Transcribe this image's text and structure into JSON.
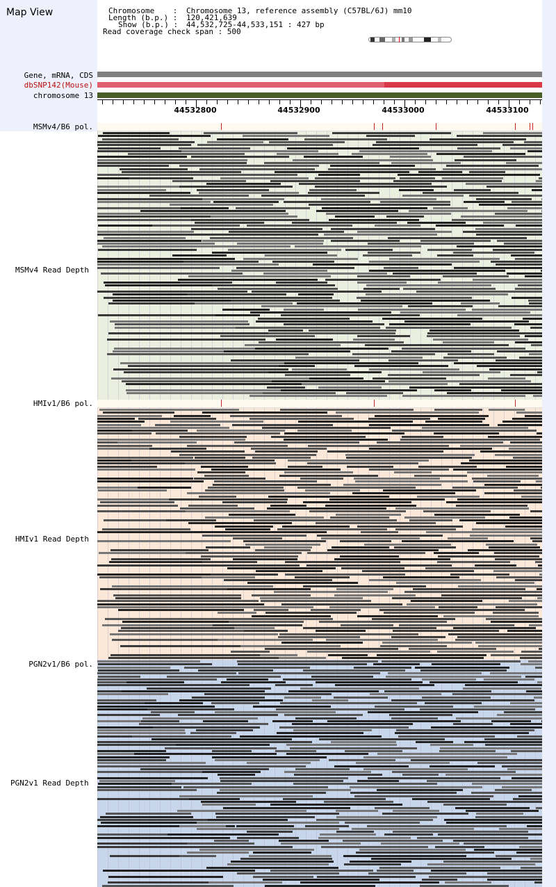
{
  "title": "Map View",
  "info": {
    "chromosome_label": "Chromosome    :",
    "chromosome_value": "Chromosome 13, reference assembly (C57BL/6J) mm10",
    "length_label": "Length (b.p.) :",
    "length_value": "120,421,639",
    "show_label": "Show (b.p.) :",
    "show_value": "44,532,725-44,533,151 : 427 bp",
    "coverage_text": "Read coverage check span : 500"
  },
  "tracks": {
    "gene": "Gene, mRNA, CDS",
    "dbsnp": "dbSNP142(Mouse)",
    "chrom": "chromosome 13"
  },
  "ruler": {
    "ticks": [
      "44532800",
      "44532900",
      "44533000",
      "44533100"
    ]
  },
  "panels": [
    {
      "pol_label": "MSMv4/B6 pol.",
      "depth_label": "MSMv4 Read Depth",
      "bg": "#ebefe0"
    },
    {
      "pol_label": "HMIv1/B6 pol.",
      "depth_label": "HMIv1 Read Depth",
      "bg": "#fbe8d8"
    },
    {
      "pol_label": "PGN2v1/B6 pol.",
      "depth_label": "PGN2v1 Read Depth",
      "bg": "#c8d6ec"
    }
  ],
  "colors": {
    "gene_bar": "#808080",
    "dbsnp_bar": "#e06070",
    "dbsnp_bar_dark": "#d83848",
    "chrom_bar": "#4a5e28",
    "snp_mark": "#cc2222",
    "read_dark": "#222222",
    "read_mid": "#555555"
  }
}
